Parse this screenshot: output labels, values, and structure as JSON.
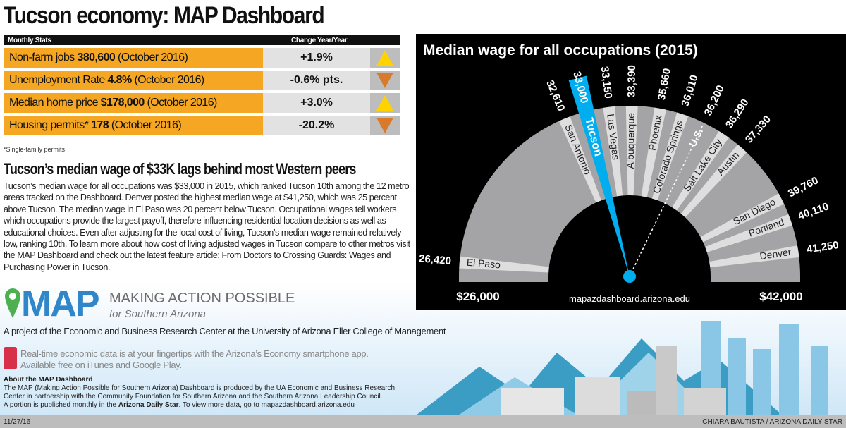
{
  "title": "Tucson economy: MAP Dashboard",
  "stats": {
    "header_left": "Monthly Stats",
    "header_right": "Change Year/Year",
    "rows": [
      {
        "label": "Non-farm jobs",
        "value": "380,600",
        "period": "(October 2016)",
        "change": "+1.9%",
        "direction": "up"
      },
      {
        "label": "Unemployment Rate",
        "value": "4.8%",
        "period": "(October 2016)",
        "change": "-0.6% pts.",
        "direction": "down"
      },
      {
        "label": "Median home price",
        "value": "$178,000",
        "period": "(October 2016)",
        "change": "+3.0%",
        "direction": "up"
      },
      {
        "label": "Housing permits*",
        "value": "178",
        "period": "(October 2016)",
        "change": "-20.2%",
        "direction": "down"
      }
    ],
    "footnote": "*Single-family permits",
    "colors": {
      "label_bg": "#f5a623",
      "up": "#ffd200",
      "down": "#d87a2a"
    }
  },
  "article": {
    "heading": "Tucson’s median wage of $33K lags behind most Western peers",
    "body": "Tucson’s median wage for all occupations was $33,000 in 2015, which ranked Tucson 10th among the 12 metro areas tracked on the Dashboard. Denver posted the highest median wage at $41,250, which was 25 percent above Tucson. The median wage in El Paso was 20 percent below Tucson. Occupational wages tell workers which occupations provide the largest payoff, therefore influencing residential location decisions as well as educational choices. Even after adjusting for the local cost of living, Tucson’s median wage remained relatively low, ranking 10th. To learn more about how cost of living adjusted wages in Tucson compare to other metros visit the MAP Dashboard and check out the latest feature article: From Doctors to Crossing Guards: Wages and Purchasing Power in Tucson."
  },
  "chart_data": {
    "type": "gauge",
    "title": "Median wage for all occupations (2015)",
    "range": [
      26000,
      42000
    ],
    "min_label": "$26,000",
    "max_label": "$42,000",
    "source": "mapazdashboard.arizona.edu",
    "highlight": "Tucson",
    "highlight_color": "#00aeef",
    "reference": "U.S.",
    "points": [
      {
        "name": "El Paso",
        "value": 26420,
        "label": "26,420"
      },
      {
        "name": "San Antonio",
        "value": 32610,
        "label": "32,610"
      },
      {
        "name": "Tucson",
        "value": 33000,
        "label": "33,000"
      },
      {
        "name": "Las Vegas",
        "value": 33150,
        "label": "33,150"
      },
      {
        "name": "Albuquerque",
        "value": 33390,
        "label": "33,390"
      },
      {
        "name": "Phoenix",
        "value": 35660,
        "label": "35,660"
      },
      {
        "name": "Colorado Springs",
        "value": 36010,
        "label": "36,010"
      },
      {
        "name": "U.S.",
        "value": 36200,
        "label": "36,200"
      },
      {
        "name": "Salt Lake City",
        "value": 36290,
        "label": "36,290"
      },
      {
        "name": "Austin",
        "value": 37330,
        "label": "37,330"
      },
      {
        "name": "San Diego",
        "value": 39760,
        "label": "39,760"
      },
      {
        "name": "Portland",
        "value": 40110,
        "label": "40,110"
      },
      {
        "name": "Denver",
        "value": 41250,
        "label": "41,250"
      }
    ]
  },
  "branding": {
    "logo": "MAP",
    "tagline1": "MAKING ACTION POSSIBLE",
    "tagline2": "for Southern Arizona",
    "project": "A project of the Economic and Business Research Center at the University of Arizona Eller College of Management",
    "app_line1": "Real-time economic data is at your fingertips with the Arizona’s Economy smartphone app.",
    "app_line2": "Available free on iTunes and Google Play."
  },
  "about": {
    "heading": "About the MAP Dashboard",
    "line1": "The MAP (Making Action Possible for Southern Arizona) Dashboard is produced by the UA Economic and Business Research Center in partnership with the Community Foundation for Southern Arizona and the Southern Arizona Leadership Council.",
    "line2a": "A portion is published monthly in the ",
    "line2b": "Arizona Daily Star",
    "line2c": ". To view more data, go to mapazdashboard.arizona.edu"
  },
  "footer": {
    "date": "11/27/16",
    "credit": "CHIARA BAUTISTA / ARIZONA DAILY STAR"
  }
}
